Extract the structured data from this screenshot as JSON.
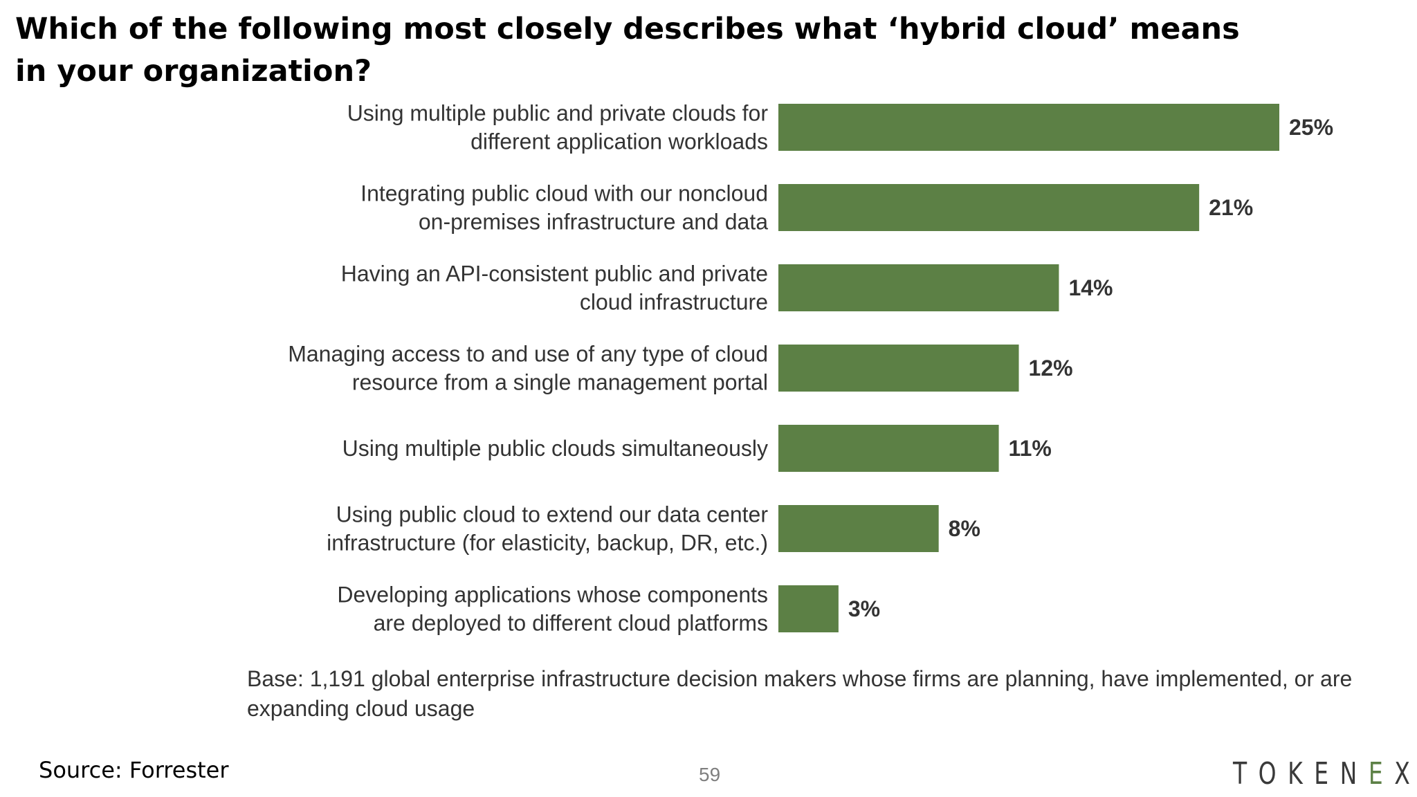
{
  "slide": {
    "title": "Which of the following most closely describes what ‘hybrid cloud’ means in your organization?",
    "base_note": "Base: 1,191 global enterprise infrastructure decision makers whose firms are planning, have implemented, or are expanding cloud usage",
    "source": "Source: Forrester",
    "page_number": "59",
    "logo": "TOKENEX"
  },
  "colors": {
    "bar": "#5c8045",
    "label_text": "#333333",
    "logo_accent": "#5c8045"
  },
  "chart_data": {
    "type": "bar",
    "orientation": "horizontal",
    "categories": [
      [
        "Using multiple public and private clouds for",
        "different application workloads"
      ],
      [
        "Integrating public cloud with our noncloud",
        "on-premises infrastructure and data"
      ],
      [
        "Having an API-consistent public and private",
        "cloud infrastructure"
      ],
      [
        "Managing access to and use of any type of cloud",
        "resource from a single management portal"
      ],
      [
        "Using multiple public clouds simultaneously"
      ],
      [
        "Using public cloud to extend our data center",
        "infrastructure (for elasticity, backup, DR, etc.)"
      ],
      [
        "Developing applications whose components",
        "are deployed to different cloud platforms"
      ]
    ],
    "values": [
      25,
      21,
      14,
      12,
      11,
      8,
      3
    ],
    "value_labels": [
      "25%",
      "21%",
      "14%",
      "12%",
      "11%",
      "8%",
      "3%"
    ],
    "unit": "%",
    "xlim": [
      0,
      25
    ],
    "grid": false,
    "legend": "none"
  }
}
